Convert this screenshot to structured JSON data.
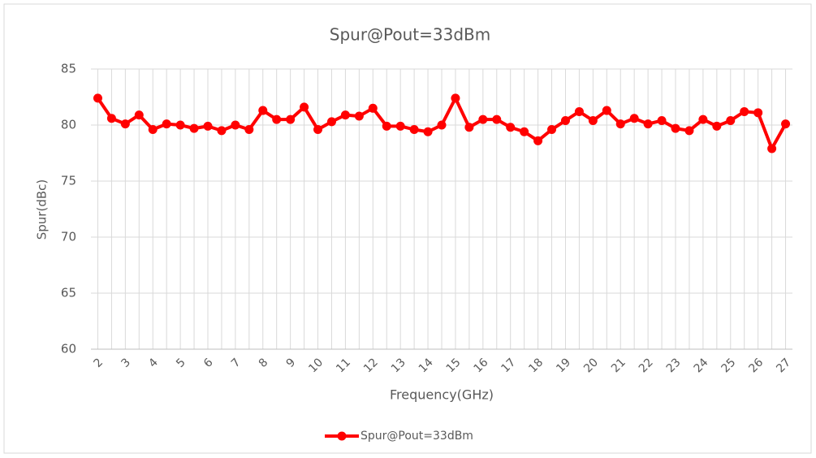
{
  "chart_data": {
    "type": "line",
    "title": "Spur@Pout=33dBm",
    "x_label": "Frequency(GHz)",
    "y_label": "Spur(dBc)",
    "categories": [
      "2",
      null,
      "3",
      null,
      "4",
      null,
      "5",
      null,
      "6",
      null,
      "7",
      null,
      "8",
      null,
      "9",
      null,
      "10",
      null,
      "11",
      null,
      "12",
      null,
      "13",
      null,
      "14",
      null,
      "15",
      null,
      "16",
      null,
      "17",
      null,
      "18",
      null,
      "19",
      null,
      "20",
      null,
      "21",
      null,
      "22",
      null,
      "23",
      null,
      "24",
      null,
      "25",
      null,
      "26",
      null,
      "27"
    ],
    "series": [
      {
        "name": "Spur@Pout=33dBm",
        "color": "#ff0000",
        "values": [
          82.4,
          80.6,
          80.1,
          80.9,
          79.6,
          80.1,
          80.0,
          79.7,
          79.9,
          79.5,
          80.0,
          79.6,
          81.3,
          80.5,
          80.5,
          81.6,
          79.6,
          80.3,
          80.9,
          80.8,
          81.5,
          79.9,
          79.9,
          79.6,
          79.4,
          80.0,
          82.4,
          79.8,
          80.5,
          80.5,
          79.8,
          79.4,
          78.6,
          79.6,
          80.4,
          81.2,
          80.4,
          81.3,
          80.1,
          80.6,
          80.1,
          80.4,
          79.7,
          79.5,
          80.5,
          79.9,
          80.4,
          81.2,
          81.1,
          77.9,
          80.1
        ]
      }
    ],
    "ylim": [
      60,
      85
    ],
    "yticks": [
      60,
      65,
      70,
      75,
      80,
      85
    ],
    "grid": true,
    "legend": "bottom"
  }
}
